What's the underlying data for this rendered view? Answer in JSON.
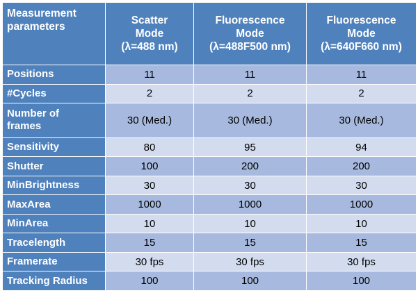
{
  "table": {
    "header": {
      "param": [
        "Measurement",
        "parameters"
      ],
      "scatter": [
        "Scatter",
        "Mode",
        "(λ=488 nm)"
      ],
      "fluor1": [
        "Fluorescence",
        "Mode",
        "(λ=488F500 nm)"
      ],
      "fluor2": [
        "Fluorescence",
        "Mode",
        "(λ=640F660 nm)"
      ]
    },
    "rows": [
      {
        "label": "Positions",
        "scatter": "11",
        "fluor1": "11",
        "fluor2": "11"
      },
      {
        "label": "#Cycles",
        "scatter": "2",
        "fluor1": "2",
        "fluor2": "2"
      },
      {
        "label": [
          "Number of",
          "frames"
        ],
        "scatter": "30 (Med.)",
        "fluor1": "30 (Med.)",
        "fluor2": "30 (Med.)"
      },
      {
        "label": "Sensitivity",
        "scatter": "80",
        "fluor1": "95",
        "fluor2": "94"
      },
      {
        "label": "Shutter",
        "scatter": "100",
        "fluor1": "200",
        "fluor2": "200"
      },
      {
        "label": "MinBrightness",
        "scatter": "30",
        "fluor1": "30",
        "fluor2": "30"
      },
      {
        "label": "MaxArea",
        "scatter": "1000",
        "fluor1": "1000",
        "fluor2": "1000"
      },
      {
        "label": "MinArea",
        "scatter": "10",
        "fluor1": "10",
        "fluor2": "10"
      },
      {
        "label": "Tracelength",
        "scatter": "15",
        "fluor1": "15",
        "fluor2": "15"
      },
      {
        "label": "Framerate",
        "scatter": "30 fps",
        "fluor1": "30 fps",
        "fluor2": "30 fps"
      },
      {
        "label": "Tracking Radius",
        "scatter": "100",
        "fluor1": "100",
        "fluor2": "100"
      }
    ]
  },
  "colors": {
    "header_bg": "#4f81bd",
    "row_dark": "#a7b9de",
    "row_light": "#d3dcef"
  }
}
